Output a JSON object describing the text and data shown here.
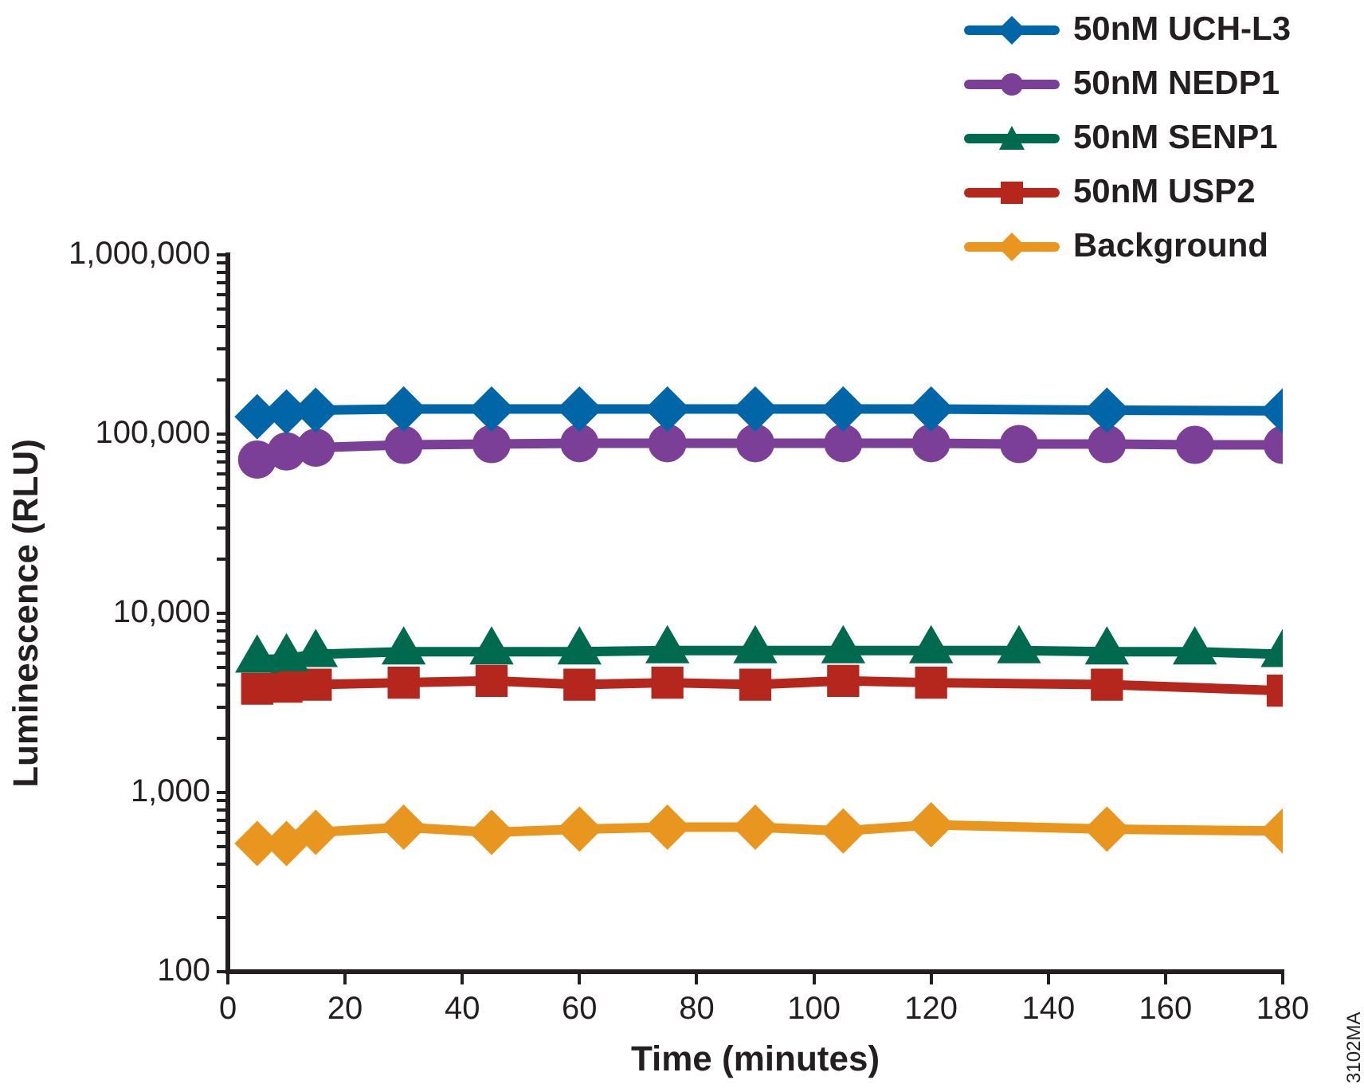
{
  "chart_data": {
    "type": "line",
    "xlabel": "Time (minutes)",
    "ylabel": "Luminescence (RLU)",
    "log": "y",
    "grid": false,
    "legend": "top right",
    "line_style": "solid",
    "xlim": [
      0,
      180
    ],
    "xticks": [
      0,
      20,
      40,
      60,
      80,
      100,
      120,
      140,
      160,
      180
    ],
    "ylim": [
      100,
      1000000
    ],
    "yticks": [
      {
        "value": 100,
        "label": "100"
      },
      {
        "value": 200,
        "label": null
      },
      {
        "value": 300,
        "label": null
      },
      {
        "value": 400,
        "label": null
      },
      {
        "value": 500,
        "label": null
      },
      {
        "value": 600,
        "label": null
      },
      {
        "value": 700,
        "label": null
      },
      {
        "value": 800,
        "label": null
      },
      {
        "value": 900,
        "label": null
      },
      {
        "value": 1000,
        "label": "1,000"
      },
      {
        "value": 2000,
        "label": null
      },
      {
        "value": 3000,
        "label": null
      },
      {
        "value": 4000,
        "label": null
      },
      {
        "value": 5000,
        "label": null
      },
      {
        "value": 6000,
        "label": null
      },
      {
        "value": 7000,
        "label": null
      },
      {
        "value": 8000,
        "label": null
      },
      {
        "value": 9000,
        "label": null
      },
      {
        "value": 10000,
        "label": "10,000"
      },
      {
        "value": 20000,
        "label": null
      },
      {
        "value": 30000,
        "label": null
      },
      {
        "value": 40000,
        "label": null
      },
      {
        "value": 50000,
        "label": null
      },
      {
        "value": 60000,
        "label": null
      },
      {
        "value": 70000,
        "label": null
      },
      {
        "value": 80000,
        "label": null
      },
      {
        "value": 90000,
        "label": null
      },
      {
        "value": 100000,
        "label": "100,000"
      },
      {
        "value": 200000,
        "label": null
      },
      {
        "value": 300000,
        "label": null
      },
      {
        "value": 400000,
        "label": null
      },
      {
        "value": 500000,
        "label": null
      },
      {
        "value": 600000,
        "label": null
      },
      {
        "value": 700000,
        "label": null
      },
      {
        "value": 800000,
        "label": null
      },
      {
        "value": 900000,
        "label": null
      },
      {
        "value": 1000000,
        "label": "1,000,000"
      }
    ],
    "annotations": [
      "3102MA"
    ],
    "series": [
      {
        "name": "50nM UCH-L3",
        "color": "#0066a8",
        "marker": "diamond",
        "x": [
          5,
          10,
          15,
          30,
          45,
          60,
          75,
          90,
          105,
          120,
          150,
          180
        ],
        "values": [
          125000,
          133000,
          136000,
          138000,
          138000,
          138000,
          138000,
          138000,
          138000,
          138000,
          136000,
          135000
        ]
      },
      {
        "name": "50nM NEDP1",
        "color": "#7b3f98",
        "marker": "circle",
        "x": [
          5,
          10,
          15,
          30,
          45,
          60,
          75,
          90,
          105,
          120,
          135,
          150,
          165,
          180
        ],
        "values": [
          72000,
          80000,
          84000,
          87000,
          88000,
          89000,
          89000,
          89000,
          89000,
          89000,
          88000,
          88000,
          87000,
          87000
        ]
      },
      {
        "name": "50nM SENP1",
        "color": "#006a4e",
        "marker": "triangle",
        "x": [
          5,
          10,
          15,
          30,
          45,
          60,
          75,
          90,
          105,
          120,
          135,
          150,
          165,
          180
        ],
        "values": [
          5500,
          5600,
          5900,
          6100,
          6100,
          6100,
          6200,
          6200,
          6200,
          6200,
          6200,
          6100,
          6100,
          5900
        ]
      },
      {
        "name": "50nM USP2",
        "color": "#b5271c",
        "marker": "square",
        "x": [
          5,
          10,
          15,
          30,
          45,
          60,
          75,
          90,
          105,
          120,
          150,
          180
        ],
        "values": [
          3800,
          3900,
          4000,
          4100,
          4200,
          4000,
          4100,
          4000,
          4200,
          4100,
          4000,
          3700
        ]
      },
      {
        "name": "Background",
        "color": "#e8961e",
        "marker": "diamond",
        "x": [
          5,
          10,
          15,
          30,
          45,
          60,
          75,
          90,
          105,
          120,
          150,
          180
        ],
        "values": [
          520,
          520,
          600,
          640,
          600,
          625,
          640,
          640,
          610,
          660,
          625,
          610
        ]
      }
    ]
  }
}
